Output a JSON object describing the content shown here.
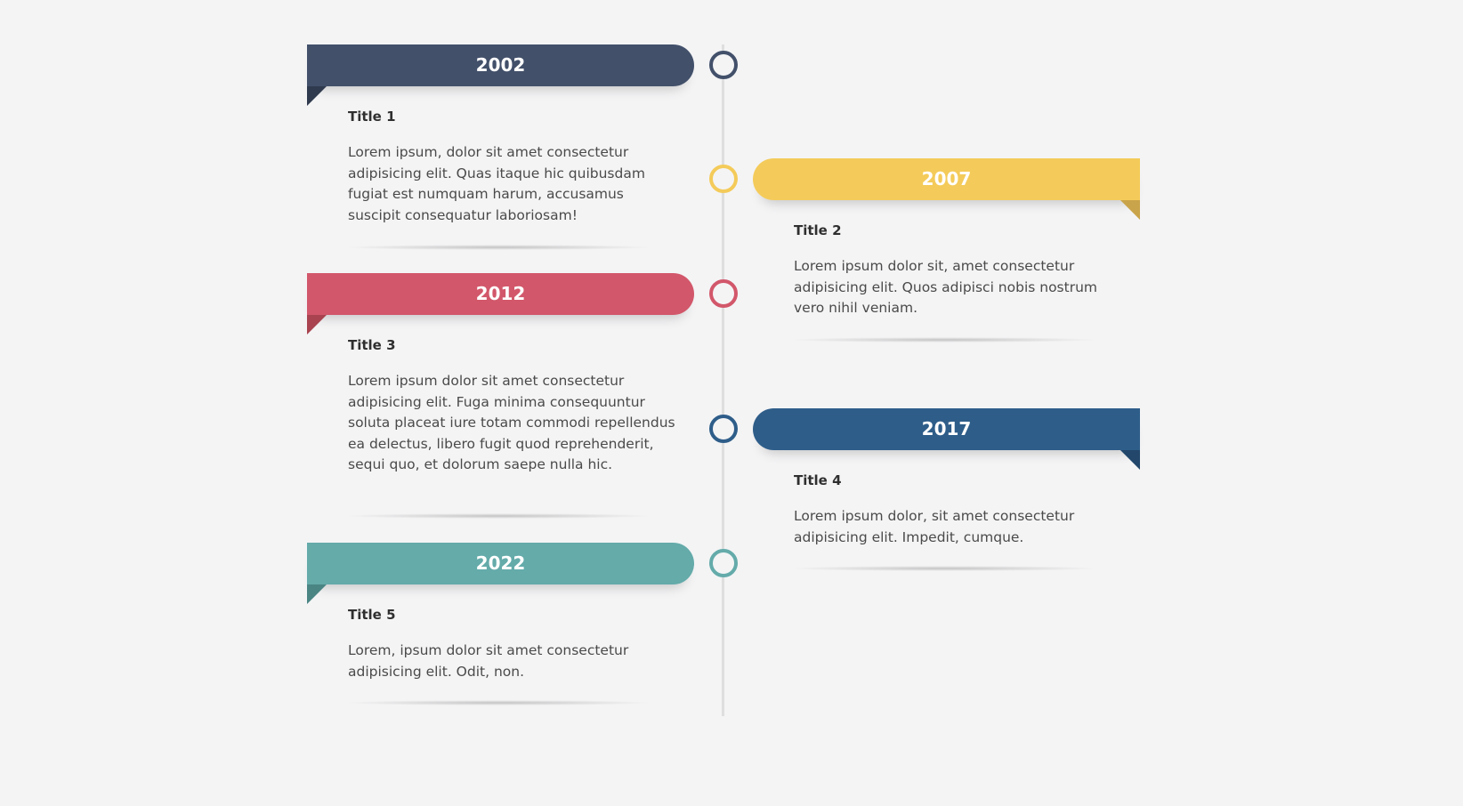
{
  "colors": {
    "slate": "#42506a",
    "yellow": "#f4cb5a",
    "red": "#d2576a",
    "blue": "#2e5d89",
    "teal": "#64abaa",
    "axis": "#dedede",
    "background": "#f4f4f5"
  },
  "events": [
    {
      "year": "2002",
      "title": "Title 1",
      "body": "Lorem ipsum, dolor sit amet consectetur adipisicing elit. Quas itaque hic quibusdam fugiat est numquam harum, accusamus suscipit consequatur laboriosam!",
      "side": "left",
      "color": "#42506a"
    },
    {
      "year": "2007",
      "title": "Title 2",
      "body": "Lorem ipsum dolor sit, amet consectetur adipisicing elit. Quos adipisci nobis nostrum vero nihil veniam.",
      "side": "right",
      "color": "#f4cb5a"
    },
    {
      "year": "2012",
      "title": "Title 3",
      "body": "Lorem ipsum dolor sit amet consectetur adipisicing elit. Fuga minima consequuntur soluta placeat iure totam commodi repellendus ea delectus, libero fugit quod reprehenderit, sequi quo, et dolorum saepe nulla hic.",
      "side": "left",
      "color": "#d2576a"
    },
    {
      "year": "2017",
      "title": "Title 4",
      "body": "Lorem ipsum dolor, sit amet consectetur adipisicing elit. Impedit, cumque.",
      "side": "right",
      "color": "#2e5d89"
    },
    {
      "year": "2022",
      "title": "Title 5",
      "body": "Lorem, ipsum dolor sit amet consectetur adipisicing elit. Odit, non.",
      "side": "left",
      "color": "#64abaa"
    }
  ]
}
